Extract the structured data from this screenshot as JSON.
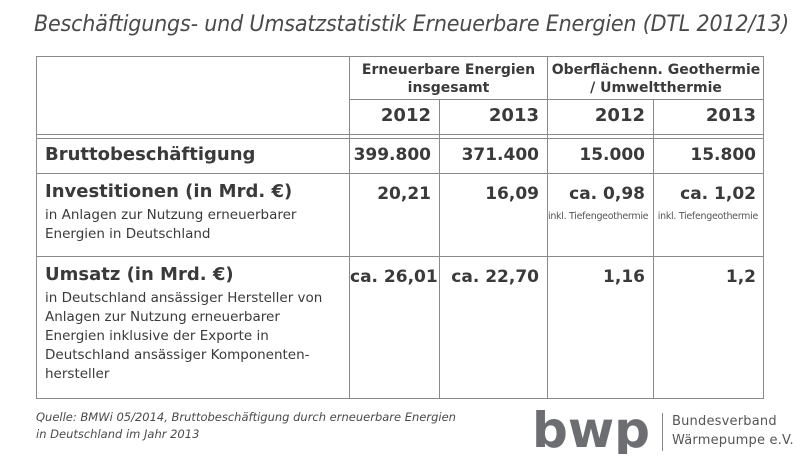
{
  "title": "Beschäftigungs- und Umsatzstatistik Erneuerbare Energien (DTL 2012/13)",
  "table": {
    "groups": [
      {
        "label": "Erneuerbare Energien insgesamt"
      },
      {
        "label": "Oberflächenn. Geothermie / Umweltthermie"
      }
    ],
    "years": [
      "2012",
      "2013",
      "2012",
      "2013"
    ],
    "rows": [
      {
        "label": "Bruttobeschäftigung",
        "description": "",
        "values": [
          "399.800",
          "371.400",
          "15.000",
          "15.800"
        ],
        "notes": [
          "",
          "",
          "",
          ""
        ]
      },
      {
        "label": "Investitionen (in Mrd. €)",
        "description": "in Anlagen zur Nutzung erneuerbarer Energien in Deutschland",
        "values": [
          "20,21",
          "16,09",
          "ca. 0,98",
          "ca. 1,02"
        ],
        "notes": [
          "",
          "",
          "inkl. Tiefengeothermie",
          "inkl. Tiefengeothermie"
        ]
      },
      {
        "label": "Umsatz (in Mrd. €)",
        "description": "in Deutschland ansässiger Hersteller von Anlagen zur Nutzung erneuerbarer Energien inklusive der Exporte in Deutschland ansässiger Komponenten-hersteller",
        "values": [
          "ca. 26,01",
          "ca. 22,70",
          "1,16",
          "1,2"
        ],
        "notes": [
          "",
          "",
          "",
          ""
        ]
      }
    ]
  },
  "source": {
    "line1": "Quelle: BMWi 05/2014, Bruttobeschäftigung durch erneuerbare Energien",
    "line2": "in Deutschland im Jahr 2013"
  },
  "logo": {
    "mark": "bwp",
    "line1": "Bundesverband",
    "line2": "Wärmepumpe e.V.",
    "color": "#6d6e71"
  }
}
